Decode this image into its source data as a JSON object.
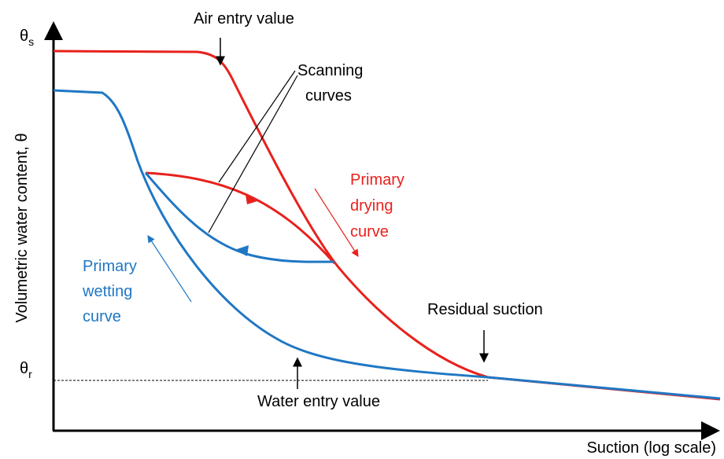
{
  "labels": {
    "theta_s": {
      "symbol": "θ",
      "subscript": "s"
    },
    "theta_r": {
      "symbol": "θ",
      "subscript": "r"
    },
    "y_axis": "Volumetric water content, θ",
    "x_axis": "Suction (log scale)",
    "air_entry": "Air entry value",
    "scanning": [
      "Scanning",
      "curves"
    ],
    "drying": [
      "Primary",
      "drying",
      "curve"
    ],
    "wetting": [
      "Primary",
      "wetting",
      "curve"
    ],
    "residual": "Residual suction",
    "water_entry": "Water entry value"
  }
}
